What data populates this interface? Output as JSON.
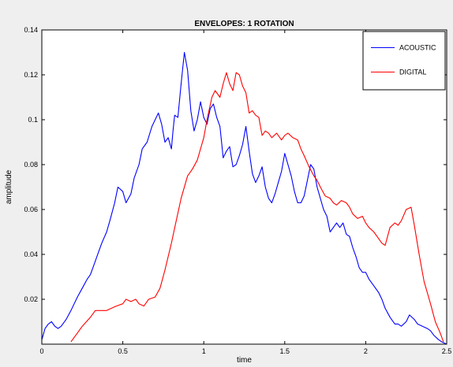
{
  "chart_data": {
    "type": "line",
    "title": "ENVELOPES: 1 ROTATION",
    "xlabel": "time",
    "ylabel": "amplitude",
    "xlim": [
      0,
      2.5
    ],
    "ylim": [
      0,
      0.14
    ],
    "x_ticks": [
      0,
      0.5,
      1,
      1.5,
      2,
      2.5
    ],
    "x_tick_labels": [
      "0",
      "0.5",
      "1",
      "1.5",
      "2",
      "2.5"
    ],
    "y_ticks": [
      0.02,
      0.04,
      0.06,
      0.08,
      0.1,
      0.12,
      0.14
    ],
    "y_tick_labels": [
      "0.02",
      "0.04",
      "0.06",
      "0.08",
      "0.1",
      "0.12",
      "0.14"
    ],
    "grid": false,
    "legend_position": "top-right",
    "background_color": "#efefef",
    "plot_background_color": "#ffffff",
    "series": [
      {
        "name": "ACOUSTIC",
        "color": "#0000ff",
        "x": [
          0,
          0.02,
          0.04,
          0.06,
          0.08,
          0.1,
          0.12,
          0.15,
          0.18,
          0.2,
          0.22,
          0.25,
          0.28,
          0.3,
          0.32,
          0.35,
          0.37,
          0.4,
          0.42,
          0.45,
          0.47,
          0.5,
          0.52,
          0.55,
          0.57,
          0.6,
          0.62,
          0.65,
          0.68,
          0.7,
          0.72,
          0.74,
          0.76,
          0.78,
          0.8,
          0.81,
          0.82,
          0.84,
          0.86,
          0.88,
          0.9,
          0.92,
          0.94,
          0.96,
          0.98,
          1.0,
          1.02,
          1.04,
          1.06,
          1.08,
          1.1,
          1.12,
          1.14,
          1.16,
          1.18,
          1.2,
          1.22,
          1.24,
          1.26,
          1.28,
          1.3,
          1.32,
          1.34,
          1.36,
          1.38,
          1.4,
          1.42,
          1.44,
          1.46,
          1.48,
          1.5,
          1.52,
          1.54,
          1.56,
          1.58,
          1.6,
          1.62,
          1.64,
          1.66,
          1.68,
          1.7,
          1.72,
          1.74,
          1.76,
          1.78,
          1.8,
          1.82,
          1.84,
          1.86,
          1.88,
          1.9,
          1.92,
          1.94,
          1.96,
          1.98,
          2.0,
          2.02,
          2.05,
          2.08,
          2.1,
          2.12,
          2.15,
          2.18,
          2.2,
          2.22,
          2.25,
          2.27,
          2.3,
          2.32,
          2.35,
          2.38,
          2.4,
          2.42,
          2.45,
          2.47,
          2.5
        ],
        "y": [
          0.002,
          0.007,
          0.009,
          0.01,
          0.008,
          0.007,
          0.008,
          0.011,
          0.015,
          0.018,
          0.021,
          0.025,
          0.029,
          0.031,
          0.035,
          0.041,
          0.045,
          0.05,
          0.055,
          0.063,
          0.07,
          0.068,
          0.063,
          0.067,
          0.074,
          0.08,
          0.087,
          0.09,
          0.097,
          0.1,
          0.103,
          0.098,
          0.09,
          0.092,
          0.087,
          0.095,
          0.102,
          0.101,
          0.116,
          0.13,
          0.122,
          0.104,
          0.095,
          0.1,
          0.108,
          0.101,
          0.098,
          0.105,
          0.107,
          0.101,
          0.097,
          0.083,
          0.086,
          0.088,
          0.079,
          0.08,
          0.084,
          0.089,
          0.097,
          0.086,
          0.076,
          0.072,
          0.075,
          0.079,
          0.07,
          0.065,
          0.063,
          0.067,
          0.072,
          0.077,
          0.085,
          0.08,
          0.075,
          0.068,
          0.063,
          0.063,
          0.066,
          0.073,
          0.08,
          0.078,
          0.07,
          0.065,
          0.06,
          0.057,
          0.05,
          0.052,
          0.054,
          0.052,
          0.054,
          0.049,
          0.048,
          0.043,
          0.039,
          0.034,
          0.032,
          0.032,
          0.029,
          0.026,
          0.023,
          0.02,
          0.016,
          0.012,
          0.009,
          0.009,
          0.008,
          0.01,
          0.013,
          0.011,
          0.009,
          0.008,
          0.007,
          0.006,
          0.004,
          0.002,
          0.001,
          0.0
        ]
      },
      {
        "name": "DIGITAL",
        "color": "#ff0000",
        "x": [
          0.18,
          0.22,
          0.25,
          0.3,
          0.33,
          0.36,
          0.4,
          0.43,
          0.46,
          0.5,
          0.52,
          0.55,
          0.58,
          0.6,
          0.63,
          0.66,
          0.7,
          0.73,
          0.76,
          0.8,
          0.83,
          0.86,
          0.9,
          0.93,
          0.96,
          1.0,
          1.02,
          1.05,
          1.07,
          1.1,
          1.12,
          1.14,
          1.16,
          1.18,
          1.2,
          1.22,
          1.24,
          1.26,
          1.28,
          1.3,
          1.32,
          1.34,
          1.36,
          1.38,
          1.4,
          1.42,
          1.45,
          1.48,
          1.5,
          1.52,
          1.55,
          1.58,
          1.6,
          1.62,
          1.65,
          1.68,
          1.7,
          1.72,
          1.75,
          1.78,
          1.8,
          1.82,
          1.85,
          1.88,
          1.9,
          1.92,
          1.95,
          1.98,
          2.0,
          2.02,
          2.05,
          2.08,
          2.1,
          2.12,
          2.15,
          2.18,
          2.2,
          2.22,
          2.25,
          2.28,
          2.3,
          2.33,
          2.36,
          2.4,
          2.43,
          2.46,
          2.48
        ],
        "y": [
          0.001,
          0.005,
          0.008,
          0.012,
          0.015,
          0.015,
          0.015,
          0.016,
          0.017,
          0.018,
          0.02,
          0.019,
          0.02,
          0.018,
          0.017,
          0.02,
          0.021,
          0.025,
          0.033,
          0.045,
          0.055,
          0.065,
          0.075,
          0.078,
          0.082,
          0.092,
          0.1,
          0.11,
          0.113,
          0.11,
          0.116,
          0.121,
          0.116,
          0.113,
          0.121,
          0.12,
          0.115,
          0.112,
          0.103,
          0.104,
          0.102,
          0.101,
          0.093,
          0.095,
          0.094,
          0.092,
          0.094,
          0.091,
          0.093,
          0.094,
          0.092,
          0.091,
          0.087,
          0.084,
          0.079,
          0.075,
          0.073,
          0.07,
          0.066,
          0.065,
          0.063,
          0.062,
          0.064,
          0.063,
          0.061,
          0.058,
          0.056,
          0.057,
          0.054,
          0.052,
          0.05,
          0.047,
          0.045,
          0.044,
          0.052,
          0.054,
          0.053,
          0.055,
          0.06,
          0.061,
          0.053,
          0.04,
          0.028,
          0.018,
          0.01,
          0.005,
          0.001
        ]
      }
    ]
  }
}
